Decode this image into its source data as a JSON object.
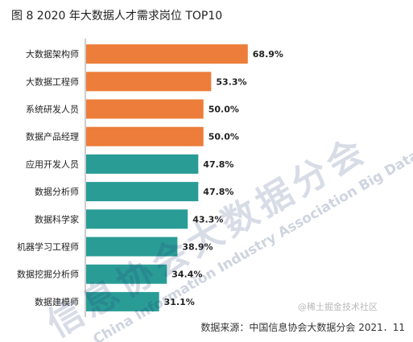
{
  "chart_data": {
    "type": "bar",
    "orientation": "horizontal",
    "title": "图 8  2020 年大数据人才需求岗位 TOP10",
    "categories": [
      "大数据架构师",
      "大数据工程师",
      "系统研发人员",
      "数据产品经理",
      "应用开发人员",
      "数据分析师",
      "数据科学家",
      "机器学习工程师",
      "数据挖掘分析师",
      "数据建模师"
    ],
    "values": [
      68.9,
      53.3,
      50.0,
      50.0,
      47.8,
      47.8,
      43.3,
      38.9,
      34.4,
      31.1
    ],
    "value_labels": [
      "68.9%",
      "53.3%",
      "50.0%",
      "50.0%",
      "47.8%",
      "47.8%",
      "43.3%",
      "38.9%",
      "34.4%",
      "31.1%"
    ],
    "unit": "%",
    "xlim": [
      0,
      70
    ],
    "grid": false,
    "colors": {
      "orange": "#ED7D3A",
      "teal": "#2A9C96",
      "axis": "#999999"
    },
    "bar_colors": [
      "orange",
      "orange",
      "orange",
      "orange",
      "teal",
      "teal",
      "teal",
      "teal",
      "teal",
      "teal"
    ]
  },
  "watermark": {
    "text_cn": "信息协会大数据分会",
    "text_en": "China Information Industry Association Big Data Branch",
    "corner": "@稀土掘金技术社区"
  },
  "source": "数据来源：中国信息协会大数据分会  2021．11"
}
